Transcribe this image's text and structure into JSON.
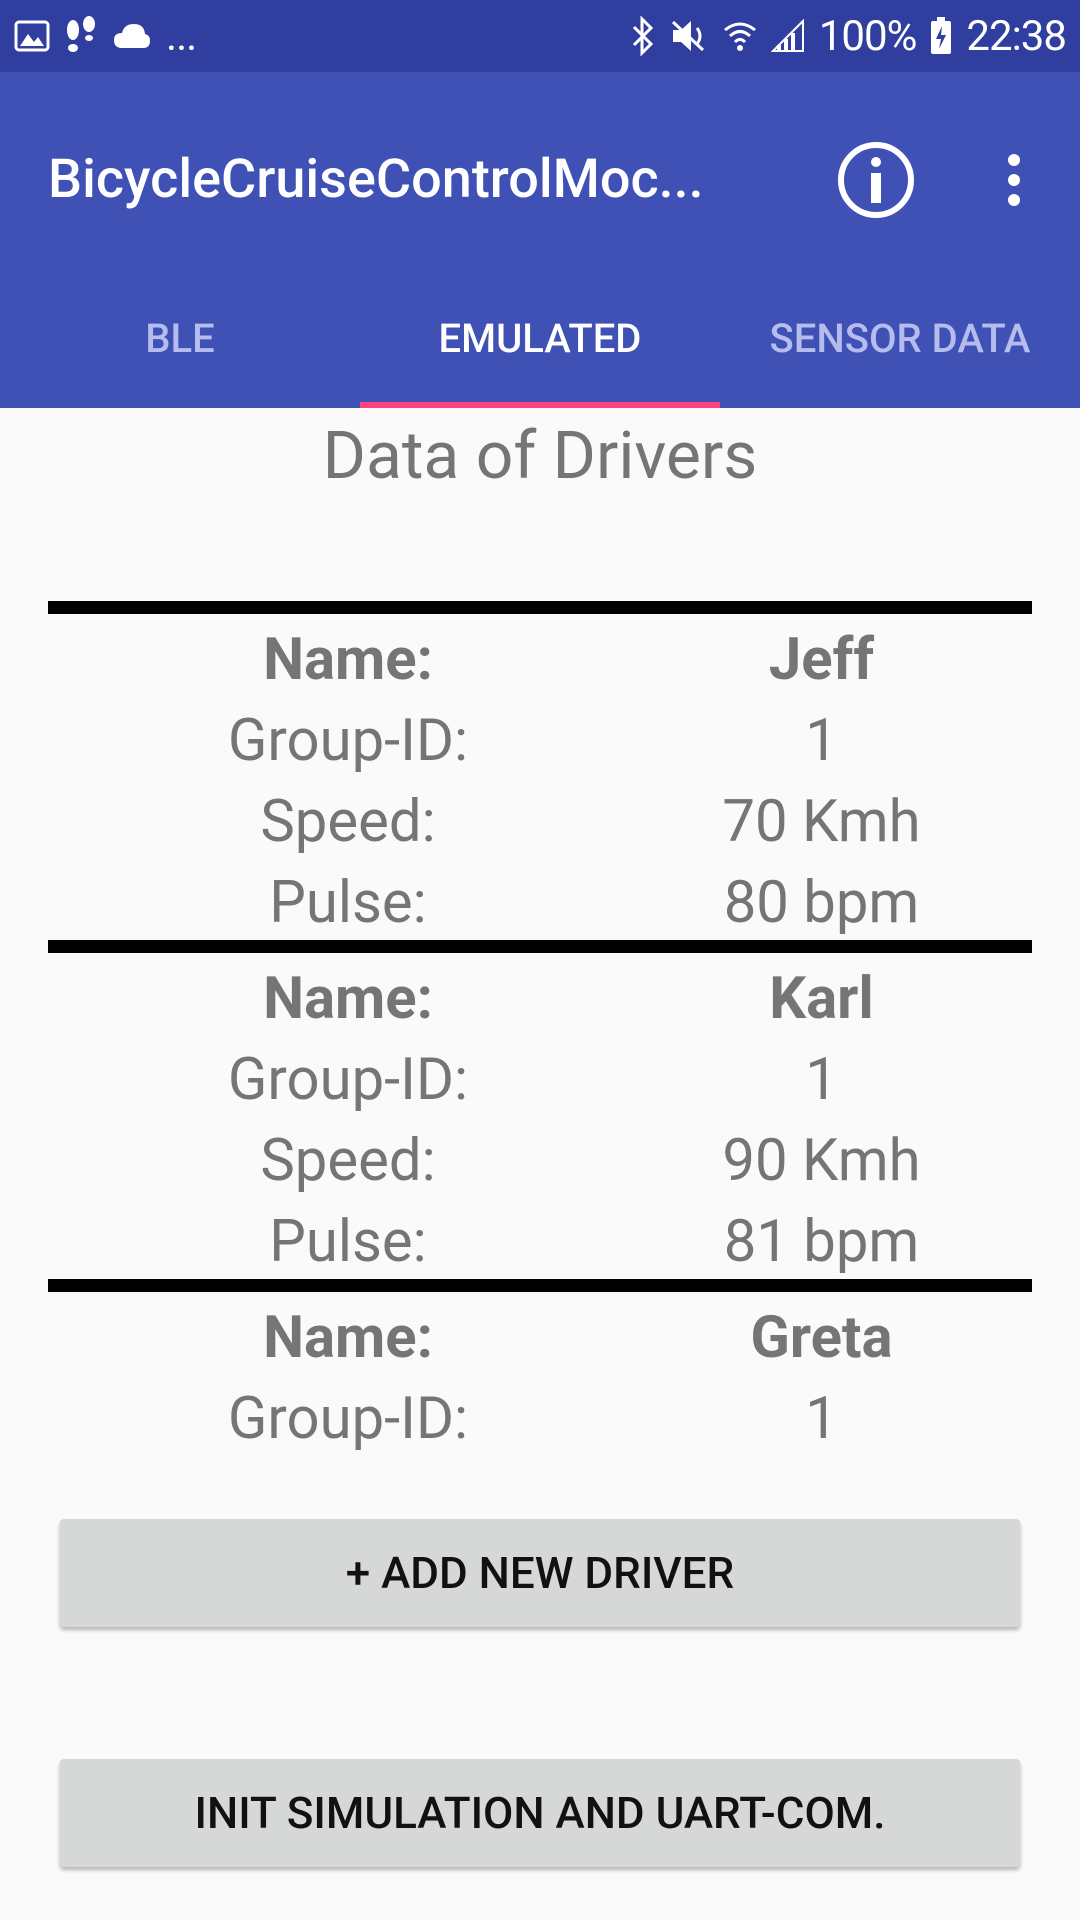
{
  "status_bar": {
    "battery": "100%",
    "time": "22:38",
    "more": "...",
    "icons": [
      "gallery-icon",
      "steps-icon",
      "cloud-icon",
      "bluetooth-icon",
      "mute-icon",
      "wifi-icon",
      "signal-icon",
      "battery-icon"
    ]
  },
  "toolbar": {
    "title": "BicycleCruiseControlMoc...",
    "info_icon": "info-icon",
    "menu_icon": "overflow-menu-icon"
  },
  "tabs": [
    {
      "label": "BLE",
      "active": false
    },
    {
      "label": "EMULATED",
      "active": true
    },
    {
      "label": "SENSOR DATA",
      "active": false
    }
  ],
  "page_title": "Data of Drivers",
  "drivers": [
    {
      "name_label": "Name:",
      "name": "Jeff",
      "group_label": "Group-ID:",
      "group": "1",
      "speed_label": "Speed:",
      "speed": "70 Kmh",
      "pulse_label": "Pulse:",
      "pulse": "80 bpm"
    },
    {
      "name_label": "Name:",
      "name": "Karl",
      "group_label": "Group-ID:",
      "group": "1",
      "speed_label": "Speed:",
      "speed": "90 Kmh",
      "pulse_label": "Pulse:",
      "pulse": "81 bpm"
    },
    {
      "name_label": "Name:",
      "name": "Greta",
      "group_label": "Group-ID:",
      "group": "1"
    }
  ],
  "buttons": {
    "add_driver": "+ ADD NEW DRIVER",
    "init_simulation": "INIT SIMULATION AND UART-COM."
  },
  "colors": {
    "status_bar": "#303f9f",
    "primary": "#3f51b5",
    "tab_indicator": "#ff4081",
    "button": "#d6d7d7"
  }
}
